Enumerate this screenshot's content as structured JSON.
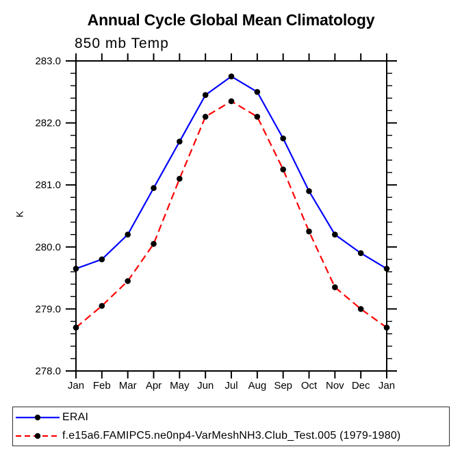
{
  "chart_data": {
    "type": "line",
    "title": "Annual Cycle Global Mean Climatology",
    "subtitle": "850 mb Temp",
    "ylabel": "K",
    "xlabel": "",
    "categories": [
      "Jan",
      "Feb",
      "Mar",
      "Apr",
      "May",
      "Jun",
      "Jul",
      "Aug",
      "Sep",
      "Oct",
      "Nov",
      "Dec",
      "Jan"
    ],
    "ylim": [
      278.0,
      283.0
    ],
    "ytick_step": 1.0,
    "ytick_minor_step": 0.2,
    "ytick_labels": [
      "278.0",
      "279.0",
      "280.0",
      "281.0",
      "282.0",
      "283.0"
    ],
    "grid": false,
    "legend_position": "bottom-left-box",
    "axis_color": "#000000",
    "series": [
      {
        "name": "ERAI",
        "color": "#0000ff",
        "line_style": "solid",
        "marker": "filled-circle",
        "marker_color": "#000000",
        "values": [
          279.65,
          279.8,
          280.2,
          280.95,
          281.7,
          282.45,
          282.75,
          282.5,
          281.75,
          280.9,
          280.2,
          279.9,
          279.65
        ]
      },
      {
        "name": "f.e15a6.FAMIPC5.ne0np4-VarMeshNH3.Club_Test.005 (1979-1980)",
        "color": "#ff0000",
        "line_style": "dashed",
        "marker": "filled-circle",
        "marker_color": "#000000",
        "values": [
          278.7,
          279.05,
          279.45,
          280.05,
          281.1,
          282.1,
          282.35,
          282.1,
          281.25,
          280.25,
          279.35,
          279.0,
          278.7
        ]
      }
    ]
  }
}
